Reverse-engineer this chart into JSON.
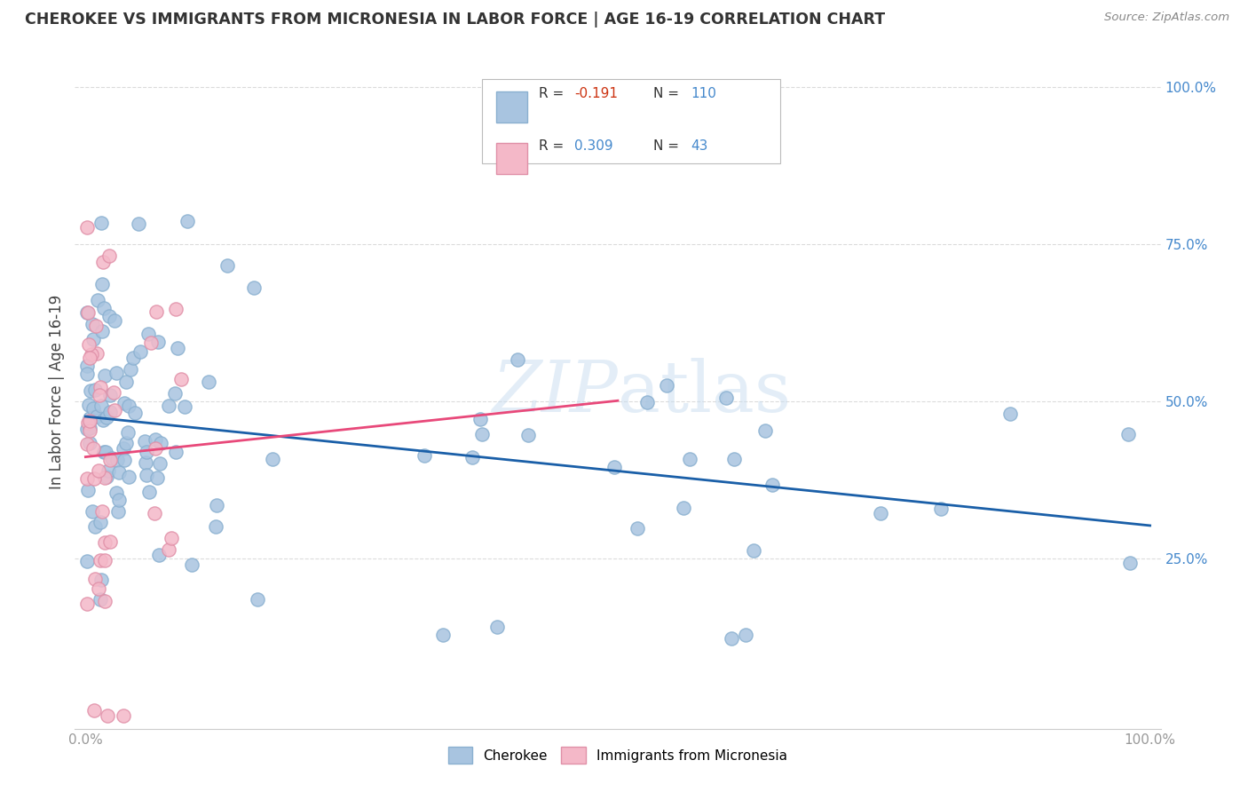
{
  "title": "CHEROKEE VS IMMIGRANTS FROM MICRONESIA IN LABOR FORCE | AGE 16-19 CORRELATION CHART",
  "source": "Source: ZipAtlas.com",
  "ylabel": "In Labor Force | Age 16-19",
  "cherokee_R": -0.191,
  "cherokee_N": 110,
  "micronesia_R": 0.309,
  "micronesia_N": 43,
  "cherokee_color": "#a8c4e0",
  "cherokee_edge_color": "#8ab0d0",
  "cherokee_line_color": "#1a5fa8",
  "micronesia_color": "#f4b8c8",
  "micronesia_edge_color": "#e090a8",
  "micronesia_line_color": "#e8497a",
  "watermark_color": "#c8ddf0",
  "background_color": "#ffffff",
  "grid_color": "#cccccc",
  "right_tick_color": "#4488cc",
  "xlim": [
    -0.005,
    1.005
  ],
  "ylim": [
    -0.02,
    1.05
  ],
  "cherokee_seed": 42,
  "micronesia_seed": 7,
  "legend_R1_color": "#cc3311",
  "legend_N_color": "#4488cc",
  "legend_R2_color": "#4488cc"
}
